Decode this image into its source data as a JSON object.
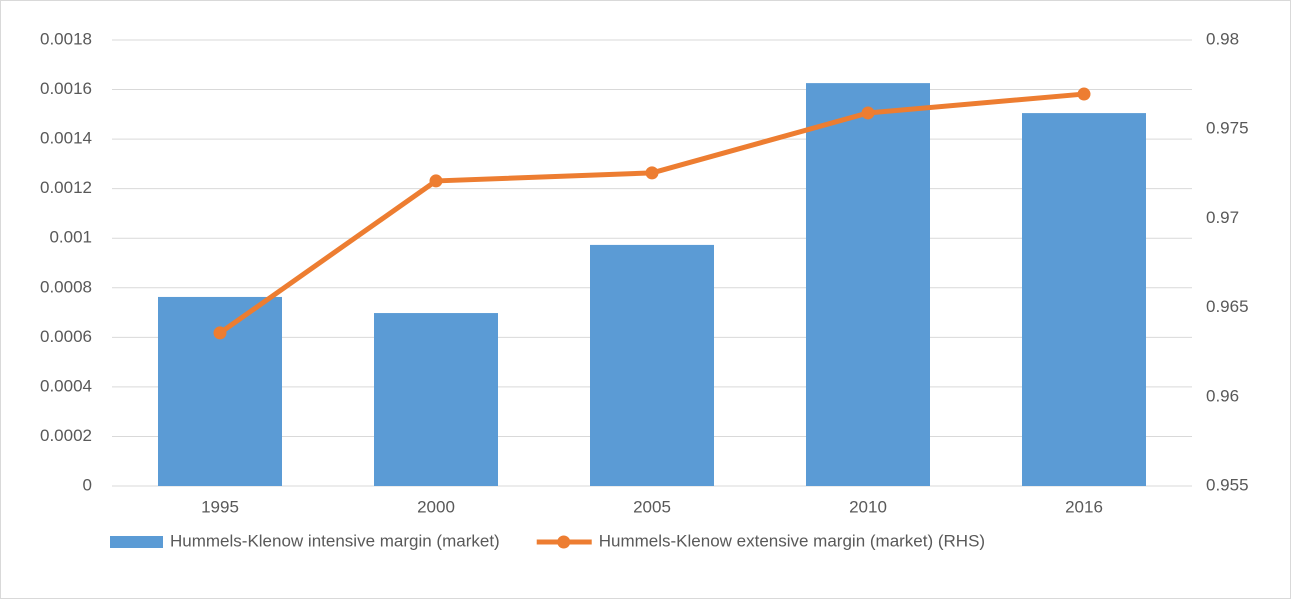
{
  "chart_data": {
    "type": "combo",
    "categories": [
      "1995",
      "2000",
      "2005",
      "2010",
      "2016"
    ],
    "series": [
      {
        "name": "Hummels-Klenow intensive margin (market)",
        "type": "bar",
        "color": "#5b9bd5",
        "values": [
          0.000763,
          0.000698,
          0.000973,
          0.001626,
          0.001505
        ]
      },
      {
        "name": "Hummels-Klenow extensive margin (market) (RHS)",
        "type": "line",
        "axis": "y2",
        "color": "#ed7d31",
        "values": [
          0.96358,
          0.9721,
          0.97255,
          0.97591,
          0.97697
        ]
      }
    ],
    "ylim": [
      0,
      0.0018
    ],
    "yticks": [
      0,
      0.0002,
      0.0004,
      0.0006,
      0.0008,
      0.001,
      0.0012,
      0.0014,
      0.0016,
      0.0018
    ],
    "y2lim": [
      0.955,
      0.98
    ],
    "y2ticks": [
      0.955,
      0.96,
      0.965,
      0.97,
      0.975,
      0.98
    ],
    "grid": true,
    "legend": "bottom"
  }
}
